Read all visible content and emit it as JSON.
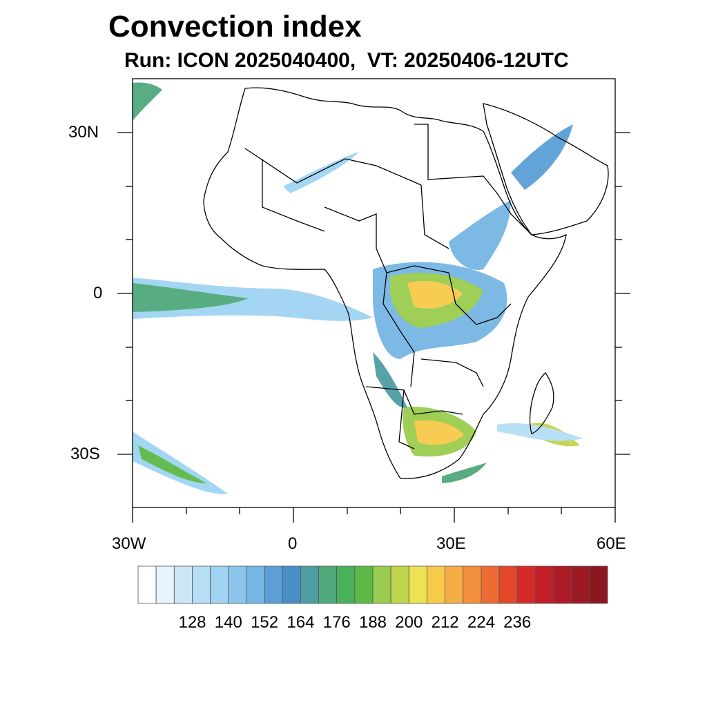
{
  "title": "Convection index",
  "subtitle": "Run: ICON 2025040400,  VT: 20250406-12UTC",
  "map": {
    "region": "Africa",
    "lon_range": [
      -30,
      60
    ],
    "lat_range": [
      -40,
      40
    ],
    "lat_labels": [
      {
        "lat": 30,
        "text": "30N"
      },
      {
        "lat": 0,
        "text": "0"
      },
      {
        "lat": -30,
        "text": "30S"
      }
    ],
    "lon_labels": [
      {
        "lon": -30,
        "text": "30W"
      },
      {
        "lon": 0,
        "text": "0"
      },
      {
        "lon": 30,
        "text": "30E"
      },
      {
        "lon": 60,
        "text": "60E"
      }
    ]
  },
  "colorbar": {
    "colors": [
      "#ffffff",
      "#e8f4fb",
      "#cbe7f7",
      "#b6def5",
      "#9fd4f2",
      "#8cc6ec",
      "#76b6e4",
      "#5b9fd6",
      "#4a8ec7",
      "#4f9ea3",
      "#4fa97b",
      "#48b25a",
      "#5cb948",
      "#9acd4f",
      "#c0d54e",
      "#ece354",
      "#f8ca4a",
      "#f7ad45",
      "#f39040",
      "#ec6d33",
      "#e2472a",
      "#d62a29",
      "#c21e27",
      "#ae1a26",
      "#9c1a24",
      "#8a1620"
    ],
    "tick_labels": [
      "128",
      "140",
      "152",
      "164",
      "176",
      "188",
      "200",
      "212",
      "224",
      "236"
    ]
  }
}
